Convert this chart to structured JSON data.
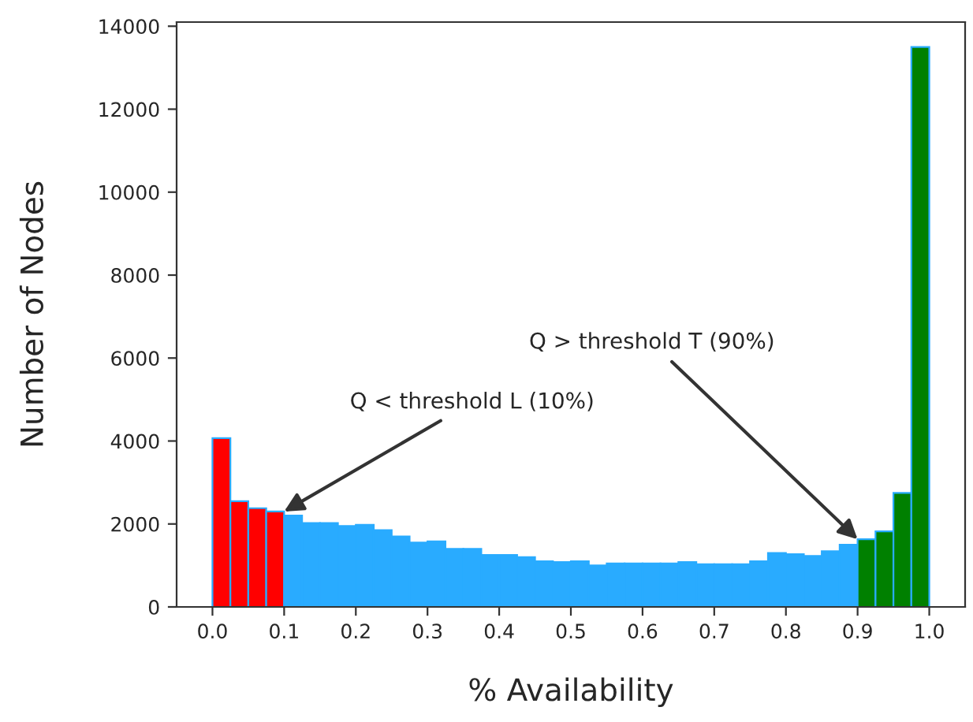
{
  "chart_data": {
    "type": "histogram",
    "xlabel": "% Availability",
    "ylabel": "Number of Nodes",
    "bins": [
      0.0,
      0.025,
      0.05,
      0.075,
      0.1,
      0.125,
      0.15,
      0.175,
      0.2,
      0.225,
      0.25,
      0.275,
      0.3,
      0.325,
      0.35,
      0.375,
      0.4,
      0.425,
      0.45,
      0.475,
      0.5,
      0.525,
      0.55,
      0.575,
      0.6,
      0.625,
      0.65,
      0.675,
      0.7,
      0.725,
      0.75,
      0.775,
      0.8,
      0.825,
      0.85,
      0.875,
      0.9,
      0.925,
      0.95,
      0.975,
      1.0
    ],
    "values": [
      4070,
      2550,
      2380,
      2300,
      2200,
      2020,
      2020,
      1950,
      1980,
      1850,
      1700,
      1550,
      1580,
      1400,
      1400,
      1250,
      1250,
      1200,
      1100,
      1080,
      1100,
      1000,
      1050,
      1050,
      1050,
      1050,
      1080,
      1030,
      1030,
      1030,
      1100,
      1300,
      1270,
      1230,
      1340,
      1500,
      1630,
      1820,
      2750,
      13500
    ],
    "colors": [
      "#ff0000",
      "#ff0000",
      "#ff0000",
      "#ff0000",
      "#29abff",
      "#29abff",
      "#29abff",
      "#29abff",
      "#29abff",
      "#29abff",
      "#29abff",
      "#29abff",
      "#29abff",
      "#29abff",
      "#29abff",
      "#29abff",
      "#29abff",
      "#29abff",
      "#29abff",
      "#29abff",
      "#29abff",
      "#29abff",
      "#29abff",
      "#29abff",
      "#29abff",
      "#29abff",
      "#29abff",
      "#29abff",
      "#29abff",
      "#29abff",
      "#29abff",
      "#29abff",
      "#29abff",
      "#29abff",
      "#29abff",
      "#29abff",
      "#008000",
      "#008000",
      "#008000",
      "#008000"
    ],
    "xlim": [
      -0.05,
      1.05
    ],
    "ylim": [
      0,
      14100
    ],
    "xticks": [
      {
        "value": 0.0,
        "label": "0.0"
      },
      {
        "value": 0.1,
        "label": "0.1"
      },
      {
        "value": 0.2,
        "label": "0.2"
      },
      {
        "value": 0.3,
        "label": "0.3"
      },
      {
        "value": 0.4,
        "label": "0.4"
      },
      {
        "value": 0.5,
        "label": "0.5"
      },
      {
        "value": 0.6,
        "label": "0.6"
      },
      {
        "value": 0.7,
        "label": "0.7"
      },
      {
        "value": 0.8,
        "label": "0.8"
      },
      {
        "value": 0.9,
        "label": "0.9"
      },
      {
        "value": 1.0,
        "label": "1.0"
      }
    ],
    "yticks": [
      0,
      2000,
      4000,
      6000,
      8000,
      10000,
      12000,
      14000
    ],
    "annotations": [
      {
        "text": "Q < threshold L (10%)",
        "x": 0.1,
        "y": 2300
      },
      {
        "text": "Q > threshold T (90%)",
        "x": 0.9,
        "y": 1630
      }
    ],
    "grid": false,
    "legend": false
  }
}
